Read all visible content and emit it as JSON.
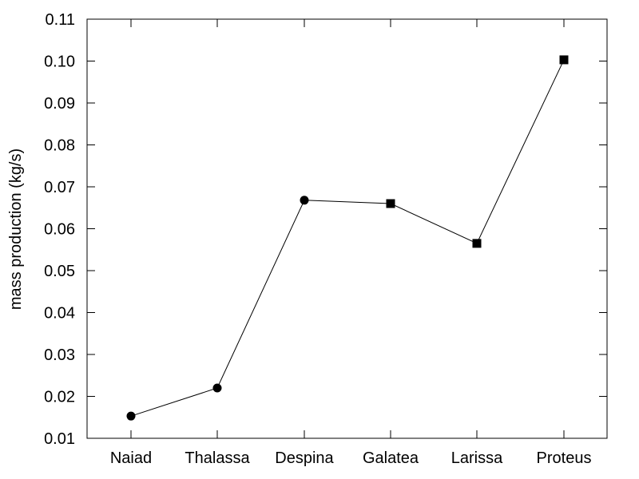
{
  "chart_data": {
    "type": "line",
    "categories": [
      "Naiad",
      "Thalassa",
      "Despina",
      "Galatea",
      "Larissa",
      "Proteus"
    ],
    "values": [
      0.0153,
      0.022,
      0.0668,
      0.066,
      0.0565,
      0.1003
    ],
    "markers": [
      "circle",
      "circle",
      "circle",
      "square",
      "square",
      "square"
    ],
    "title": "",
    "xlabel": "",
    "ylabel": "mass production (kg/s)",
    "ylim": [
      0.01,
      0.11
    ],
    "yticks": [
      "0.01",
      "0.02",
      "0.03",
      "0.04",
      "0.05",
      "0.06",
      "0.07",
      "0.08",
      "0.09",
      "0.10",
      "0.11"
    ],
    "grid": false,
    "line_color": "#000000",
    "marker_color": "#000000"
  }
}
